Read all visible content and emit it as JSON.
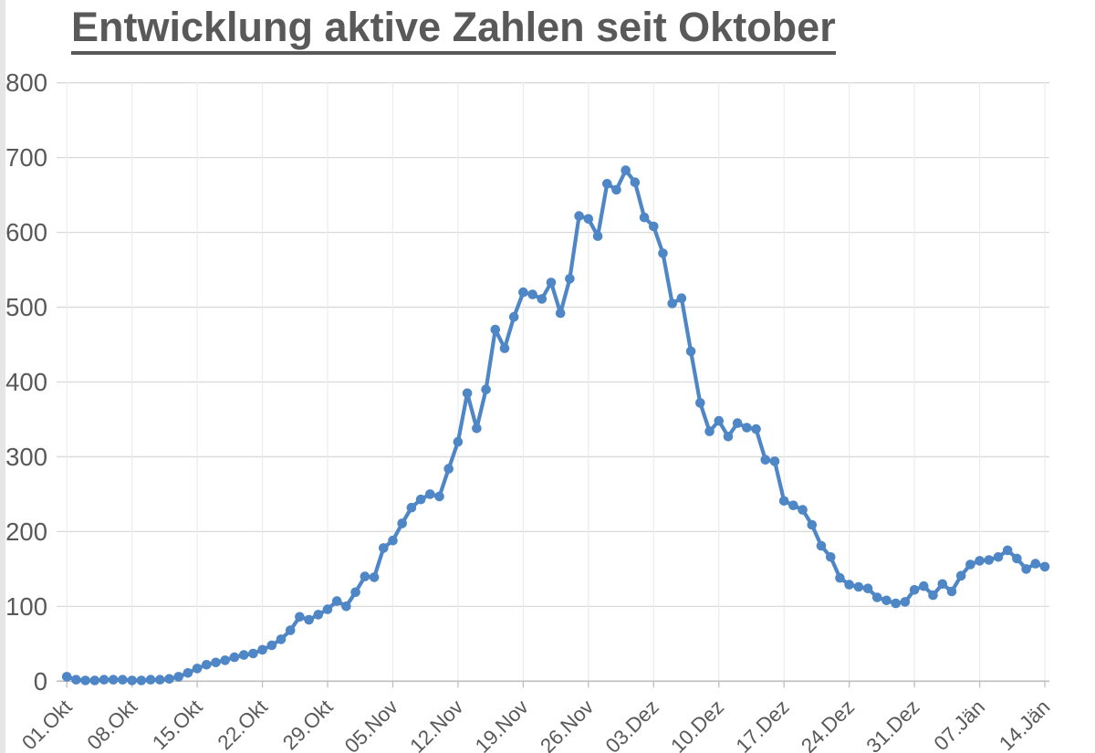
{
  "chart": {
    "title": "Entwicklung aktive Zahlen seit Oktober"
  },
  "chart_data": {
    "type": "line",
    "title": "Entwicklung aktive Zahlen seit Oktober",
    "x_first_label": "01.Okt",
    "x_last_label": "14.Jän",
    "x_tick_labels": [
      "01.Okt",
      "08.Okt",
      "15.Okt",
      "22.Okt",
      "29.Okt",
      "05.Nov",
      "12.Nov",
      "19.Nov",
      "26.Nov",
      "03.Dez",
      "10.Dez",
      "17.Dez",
      "24.Dez",
      "31.Dez",
      "07.Jän",
      "14.Jän"
    ],
    "x_tick_interval_days": 7,
    "n_points": 106,
    "values": [
      6,
      2,
      1,
      1,
      2,
      2,
      2,
      1,
      1,
      2,
      2,
      3,
      6,
      11,
      17,
      22,
      25,
      28,
      32,
      35,
      37,
      42,
      48,
      56,
      68,
      86,
      82,
      89,
      96,
      107,
      100,
      119,
      140,
      139,
      178,
      188,
      211,
      232,
      243,
      250,
      247,
      284,
      320,
      385,
      338,
      390,
      470,
      445,
      487,
      520,
      517,
      511,
      533,
      492,
      538,
      622,
      618,
      595,
      665,
      657,
      683,
      667,
      620,
      608,
      572,
      505,
      512,
      441,
      372,
      334,
      348,
      327,
      345,
      339,
      337,
      296,
      294,
      241,
      235,
      229,
      209,
      181,
      166,
      138,
      129,
      126,
      124,
      112,
      108,
      104,
      106,
      122,
      127,
      115,
      130,
      120,
      141,
      156,
      161,
      162,
      166,
      175,
      164,
      150,
      157,
      153
    ],
    "peak_value": 683,
    "ylim": [
      0,
      800
    ],
    "y_ticks": [
      0,
      100,
      200,
      300,
      400,
      500,
      600,
      700,
      800
    ],
    "xlabel": "",
    "ylabel": "",
    "legend": "none",
    "grid": "horizontal and vertical light gridlines",
    "series_name": "aktive Zahlen",
    "series_color": "#4E86C6",
    "marker": "circle",
    "gridline_color": "#D9D9D9",
    "axis_line_color": "#BFBFBF",
    "tick_label_color": "#595959",
    "title_color": "#595959"
  }
}
